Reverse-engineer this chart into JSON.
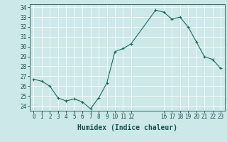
{
  "x": [
    0,
    1,
    2,
    3,
    4,
    5,
    6,
    7,
    8,
    9,
    10,
    11,
    12,
    15,
    16,
    17,
    18,
    19,
    20,
    21,
    22,
    23
  ],
  "y": [
    26.7,
    26.5,
    26.0,
    24.8,
    24.5,
    24.7,
    24.4,
    23.7,
    24.8,
    26.3,
    29.5,
    29.8,
    30.3,
    33.7,
    33.5,
    32.8,
    33.0,
    32.0,
    30.5,
    29.0,
    28.7,
    27.8
  ],
  "bg_color": "#cce8e8",
  "grid_color": "#ffffff",
  "line_color": "#1a6b5e",
  "marker_color": "#1a6b5e",
  "xlabel": "Humidex (Indice chaleur)",
  "ylim": [
    23.5,
    34.3
  ],
  "xlim": [
    -0.5,
    23.5
  ],
  "yticks": [
    24,
    25,
    26,
    27,
    28,
    29,
    30,
    31,
    32,
    33,
    34
  ],
  "xticks": [
    0,
    1,
    2,
    3,
    4,
    5,
    6,
    7,
    8,
    9,
    10,
    11,
    12,
    16,
    17,
    18,
    19,
    20,
    21,
    22,
    23
  ],
  "xtick_labels": [
    "0",
    "1",
    "2",
    "3",
    "4",
    "5",
    "6",
    "7",
    "8",
    "9",
    "10",
    "11",
    "12",
    "16",
    "17",
    "18",
    "19",
    "20",
    "21",
    "22",
    "23"
  ],
  "font_color": "#1a5050",
  "tick_fontsize": 5.5,
  "label_fontsize": 7
}
